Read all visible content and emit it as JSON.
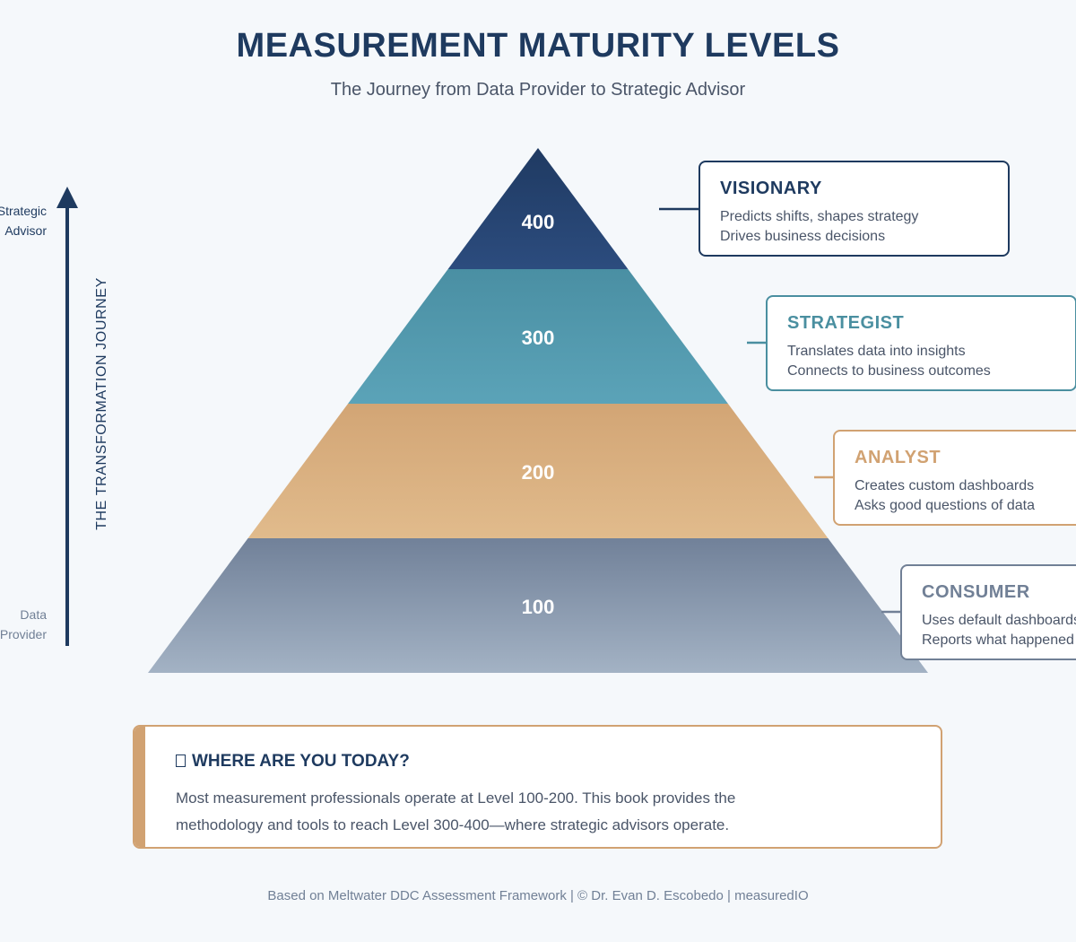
{
  "title": "MEASUREMENT MATURITY LEVELS",
  "subtitle": "The Journey from Data Provider to Strategic Advisor",
  "axis": {
    "journey_label": "THE TRANSFORMATION JOURNEY",
    "top_label": [
      "Strategic",
      "Advisor"
    ],
    "bottom_label": [
      "Data",
      "Provider"
    ]
  },
  "levels": [
    {
      "level": "400",
      "name": "VISIONARY",
      "lines": [
        "Predicts shifts, shapes strategy",
        "Drives business decisions"
      ],
      "color_top": "#1f3a62",
      "color_bottom": "#2c4c7e",
      "accent": "#1e3a5f"
    },
    {
      "level": "300",
      "name": "STRATEGIST",
      "lines": [
        "Translates data into insights",
        "Connects to business outcomes"
      ],
      "color_top": "#4a8fa3",
      "color_bottom": "#5ba3b8",
      "accent": "#4a8fa0"
    },
    {
      "level": "200",
      "name": "ANALYST",
      "lines": [
        "Creates custom dashboards",
        "Asks good questions of data"
      ],
      "color_top": "#d2a575",
      "color_bottom": "#e1bb8c",
      "accent": "#d1a272"
    },
    {
      "level": "100",
      "name": "CONSUMER",
      "lines": [
        "Uses default dashboards",
        "Reports what happened"
      ],
      "color_top": "#718199",
      "color_bottom": "#a3b2c4",
      "accent": "#718096"
    }
  ],
  "callout": {
    "heading": "WHERE ARE YOU TODAY?",
    "text": "Most measurement professionals operate at Level 100-200. This book provides the methodology and tools to reach Level 300-400—where strategic advisors operate."
  },
  "footer": "Based on Meltwater DDC Assessment Framework | © Dr. Evan D. Escobedo | measuredIO"
}
